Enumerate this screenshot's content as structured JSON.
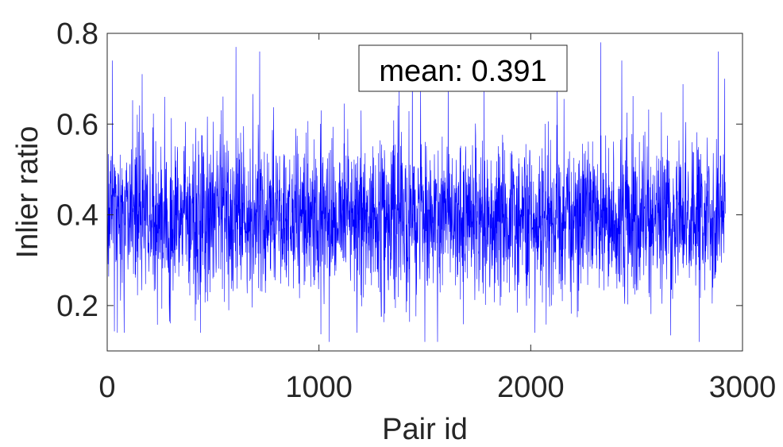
{
  "chart_data": {
    "type": "line",
    "title": "",
    "xlabel": "Pair id",
    "ylabel": "Inlier ratio",
    "xlim": [
      0,
      3000
    ],
    "ylim": [
      0.1,
      0.8
    ],
    "xticks": [
      0,
      1000,
      2000,
      3000
    ],
    "xtick_labels": [
      "0",
      "1000",
      "2000",
      "3000"
    ],
    "yticks": [
      0.2,
      0.4,
      0.6,
      0.8
    ],
    "ytick_labels": [
      "0.2",
      "0.4",
      "0.6",
      "0.8"
    ],
    "grid": false,
    "box": true,
    "line_color": "#0000ff",
    "annotation": "mean: 0.391",
    "series": [
      {
        "n_points": 2920,
        "mean": 0.391,
        "approx_std": 0.085,
        "min": 0.12,
        "max": 0.78,
        "values_sample": [
          [
            0,
            0.31
          ],
          [
            25,
            0.74
          ],
          [
            48,
            0.14
          ],
          [
            80,
            0.14
          ],
          [
            165,
            0.71
          ],
          [
            271,
            0.66
          ],
          [
            440,
            0.14
          ],
          [
            608,
            0.77
          ],
          [
            720,
            0.76
          ],
          [
            1010,
            0.63
          ],
          [
            1180,
            0.14
          ],
          [
            1480,
            0.68
          ],
          [
            1500,
            0.12
          ],
          [
            1560,
            0.12
          ],
          [
            1610,
            0.7
          ],
          [
            1780,
            0.7
          ],
          [
            2020,
            0.14
          ],
          [
            2125,
            0.69
          ],
          [
            2330,
            0.78
          ],
          [
            2430,
            0.74
          ],
          [
            2795,
            0.12
          ],
          [
            2885,
            0.76
          ],
          [
            2915,
            0.7
          ],
          [
            2920,
            0.36
          ]
        ]
      }
    ]
  }
}
